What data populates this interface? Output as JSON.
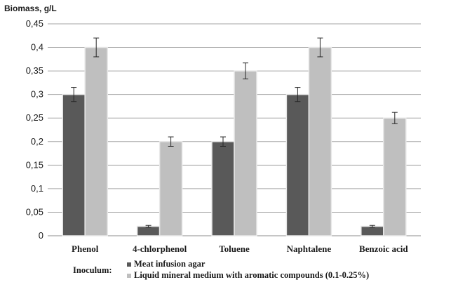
{
  "chart_data": {
    "type": "bar",
    "ylabel": "Biomass, g/L",
    "xlabel": "",
    "ylim": [
      0,
      0.45
    ],
    "ytick_step": 0.05,
    "yticks": [
      "0",
      "0,05",
      "0,1",
      "0,15",
      "0,2",
      "0,25",
      "0,3",
      "0,35",
      "0,4",
      "0,45"
    ],
    "grid": true,
    "categories": [
      "Phenol",
      "4-chlorphenol",
      "Toluene",
      "Naphtalene",
      "Benzoic acid"
    ],
    "series": [
      {
        "name": "Meat infusion agar",
        "color": "#595959",
        "values": [
          0.3,
          0.02,
          0.2,
          0.3,
          0.02
        ],
        "errors": [
          0.015,
          0.002,
          0.01,
          0.015,
          0.002
        ]
      },
      {
        "name": "Liquid mineral medium with aromatic compounds (0.1-0.25%)",
        "color": "#bfbfbf",
        "values": [
          0.4,
          0.2,
          0.35,
          0.4,
          0.25
        ],
        "errors": [
          0.02,
          0.01,
          0.017,
          0.02,
          0.012
        ]
      }
    ],
    "legend": {
      "title": "Inoculum:",
      "placement": "bottom"
    }
  }
}
